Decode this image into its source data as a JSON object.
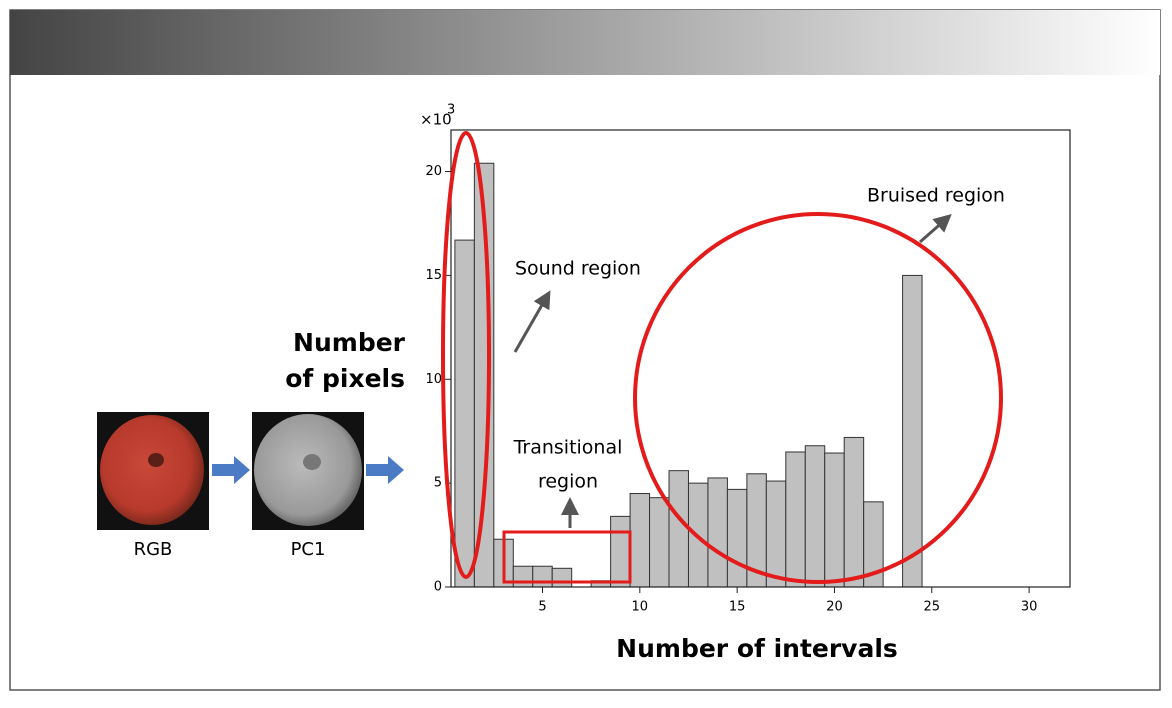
{
  "chart_data": {
    "type": "histogram",
    "bins": [
      0.5,
      1.5,
      2.5,
      3.5,
      4.5,
      5.5,
      6.5,
      7.5,
      8.5,
      9.5,
      10.5,
      11.5,
      12.5,
      13.5,
      14.5,
      15.5,
      16.5,
      17.5,
      18.5,
      19.5,
      20.5,
      21.5,
      22.5,
      23.5,
      24.5
    ],
    "values": [
      16.7,
      20.4,
      2.3,
      1.0,
      1.0,
      0.9,
      0,
      0.3,
      3.4,
      4.5,
      4.3,
      5.6,
      5.0,
      5.25,
      4.7,
      5.45,
      5.1,
      6.5,
      6.8,
      6.45,
      7.2,
      4.1,
      0,
      15.0
    ],
    "color": "#c0c0c0",
    "xlim": [
      0.3,
      32.1
    ],
    "ylim": [
      0,
      22
    ],
    "xticks": [
      5,
      10,
      15,
      20,
      25,
      30
    ],
    "yticks": [
      0,
      5,
      10,
      15,
      20
    ],
    "xlabel": "Number of intervals",
    "ylabel": [
      "Number",
      "of pixels"
    ],
    "y_multiplier": "×10",
    "y_exponent": "3",
    "annotations": {
      "sound": "Sound region",
      "bruised": "Bruised region",
      "transitional": [
        "Transitional",
        "region"
      ]
    },
    "image_labels": [
      "RGB",
      "PC1"
    ]
  }
}
